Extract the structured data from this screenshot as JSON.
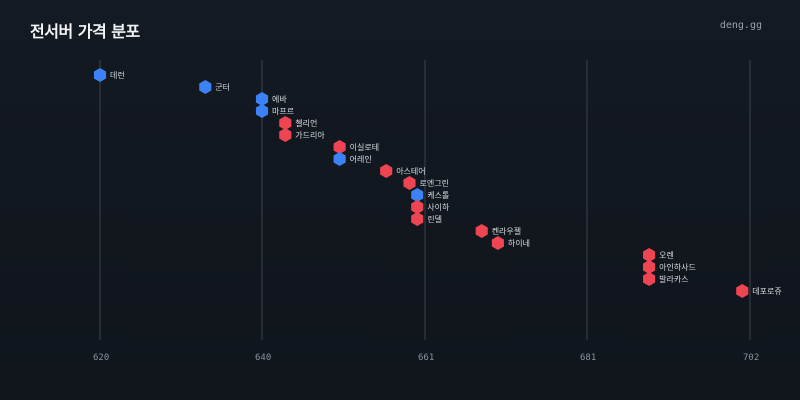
{
  "header": {
    "title": "전서버 가격 분포",
    "brand": "deng.gg"
  },
  "colors": {
    "background": "#131922",
    "gridline": "#3a424b",
    "blue": "#3b82f6",
    "red": "#ef4452"
  },
  "chart_data": {
    "type": "scatter",
    "title": "전서버 가격 분포",
    "xlabel": "",
    "ylabel": "",
    "x_ticks": [
      620,
      640,
      661,
      681,
      702
    ],
    "grid": "vertical",
    "points": [
      {
        "label": "데런",
        "x": 620,
        "color": "blue"
      },
      {
        "label": "군터",
        "x": 633,
        "color": "blue"
      },
      {
        "label": "에바",
        "x": 640,
        "color": "blue"
      },
      {
        "label": "마프르",
        "x": 640,
        "color": "blue"
      },
      {
        "label": "첼리언",
        "x": 643,
        "color": "red"
      },
      {
        "label": "가드리아",
        "x": 643,
        "color": "red"
      },
      {
        "label": "이실로테",
        "x": 650,
        "color": "red"
      },
      {
        "label": "어레인",
        "x": 650,
        "color": "blue"
      },
      {
        "label": "아스테어",
        "x": 656,
        "color": "red"
      },
      {
        "label": "로엔그린",
        "x": 659,
        "color": "red"
      },
      {
        "label": "케스톨",
        "x": 660,
        "color": "blue"
      },
      {
        "label": "사이하",
        "x": 660,
        "color": "red"
      },
      {
        "label": "린델",
        "x": 660,
        "color": "red"
      },
      {
        "label": "켄라우젤",
        "x": 668,
        "color": "red"
      },
      {
        "label": "하이네",
        "x": 670,
        "color": "red"
      },
      {
        "label": "오렌",
        "x": 689,
        "color": "red"
      },
      {
        "label": "아인하사드",
        "x": 689,
        "color": "red"
      },
      {
        "label": "발라카스",
        "x": 689,
        "color": "red"
      },
      {
        "label": "데포로쥬",
        "x": 701,
        "color": "red"
      }
    ]
  }
}
